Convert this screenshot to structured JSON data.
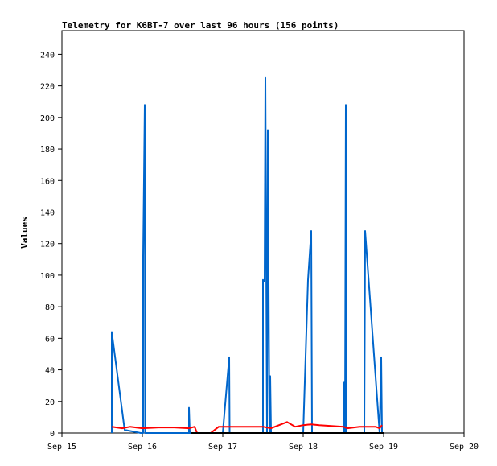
{
  "chart_data": {
    "type": "line",
    "title": "Telemetry for K6BT-7 over last 96 hours (156 points)",
    "xlabel": "",
    "ylabel": "Values",
    "x_ticks": [
      "Sep 15",
      "Sep 16",
      "Sep 17",
      "Sep 18",
      "Sep 19",
      "Sep 20"
    ],
    "x_tick_values": [
      0,
      1,
      2,
      3,
      4,
      5
    ],
    "x_range_days": [
      0,
      5
    ],
    "x_origin": "Sep 15",
    "y_ticks": [
      0,
      20,
      40,
      60,
      80,
      100,
      120,
      140,
      160,
      180,
      200,
      220,
      240
    ],
    "ylim": [
      0,
      255
    ],
    "grid": false,
    "legend": "none",
    "series": [
      {
        "color": "#0066cc",
        "points": [
          [
            0.62,
            0
          ],
          [
            0.62,
            64
          ],
          [
            0.78,
            2
          ],
          [
            0.98,
            0
          ],
          [
            1.01,
            0
          ],
          [
            1.01,
            112
          ],
          [
            1.03,
            208
          ],
          [
            1.035,
            0
          ],
          [
            1.58,
            0
          ],
          [
            1.58,
            16
          ],
          [
            1.59,
            0
          ],
          [
            2.0,
            0
          ],
          [
            2.08,
            48
          ],
          [
            2.085,
            0
          ],
          [
            2.5,
            0
          ],
          [
            2.5,
            97
          ],
          [
            2.52,
            96
          ],
          [
            2.53,
            225
          ],
          [
            2.55,
            0
          ],
          [
            2.56,
            192
          ],
          [
            2.58,
            0
          ],
          [
            2.59,
            36
          ],
          [
            2.6,
            0
          ],
          [
            3.0,
            0
          ],
          [
            3.06,
            97
          ],
          [
            3.1,
            128
          ],
          [
            3.11,
            0
          ],
          [
            3.5,
            0
          ],
          [
            3.51,
            32
          ],
          [
            3.52,
            0
          ],
          [
            3.53,
            208
          ],
          [
            3.54,
            0
          ],
          [
            3.76,
            0
          ],
          [
            3.77,
            128
          ],
          [
            3.95,
            0
          ],
          [
            3.97,
            48
          ],
          [
            3.98,
            0
          ]
        ]
      },
      {
        "color": "#ff0000",
        "points": [
          [
            0.62,
            4
          ],
          [
            0.75,
            3
          ],
          [
            0.85,
            4
          ],
          [
            1.0,
            3
          ],
          [
            1.2,
            3.5
          ],
          [
            1.4,
            3.5
          ],
          [
            1.58,
            3
          ],
          [
            1.65,
            4
          ],
          [
            1.68,
            0
          ],
          [
            1.85,
            0
          ],
          [
            1.95,
            4
          ],
          [
            2.1,
            4
          ],
          [
            2.5,
            4
          ],
          [
            2.6,
            3
          ],
          [
            2.7,
            5
          ],
          [
            2.8,
            7
          ],
          [
            2.9,
            4
          ],
          [
            3.0,
            5
          ],
          [
            3.1,
            5.5
          ],
          [
            3.2,
            5
          ],
          [
            3.5,
            4
          ],
          [
            3.55,
            3
          ],
          [
            3.7,
            4
          ],
          [
            3.9,
            4
          ],
          [
            3.95,
            3
          ],
          [
            3.98,
            5
          ]
        ]
      },
      {
        "color": "#000000",
        "points": [
          [
            1.6,
            0
          ],
          [
            2.0,
            0
          ],
          [
            2.4,
            0
          ],
          [
            2.8,
            0
          ],
          [
            3.2,
            0
          ],
          [
            3.6,
            0
          ],
          [
            4.0,
            0
          ]
        ]
      }
    ]
  }
}
